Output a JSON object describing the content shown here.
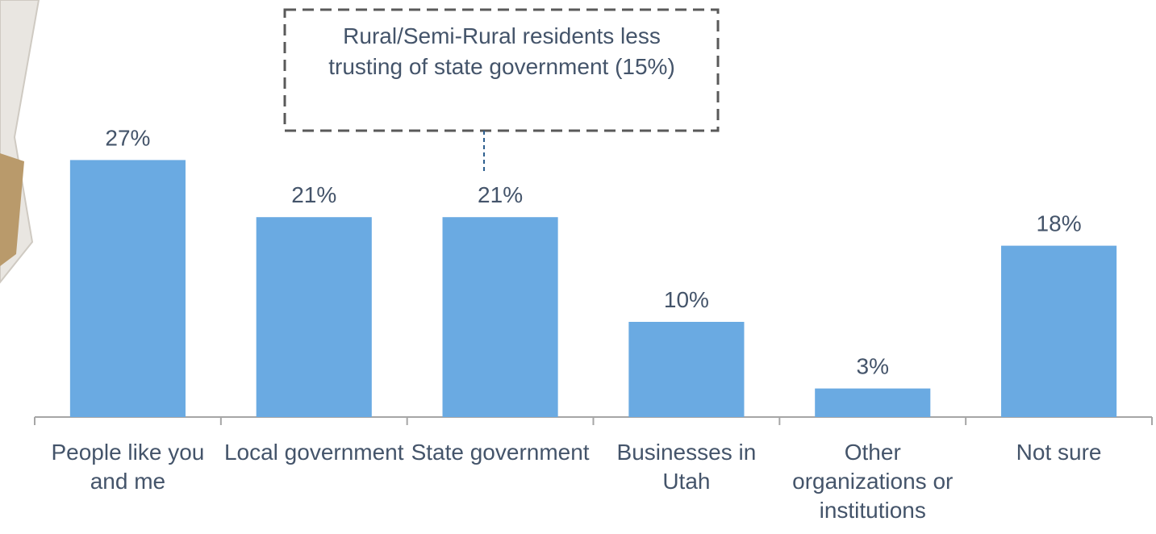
{
  "chart_data": {
    "type": "bar",
    "categories": [
      "People like you and me",
      "Local government",
      "State government",
      "Businesses in Utah",
      "Other organizations or institutions",
      "Not sure"
    ],
    "values": [
      27,
      21,
      21,
      10,
      3,
      18
    ],
    "value_labels": [
      "27%",
      "21%",
      "21%",
      "10%",
      "3%",
      "18%"
    ],
    "color": "#6aaae2",
    "ylim": [
      0,
      30
    ],
    "annotation": "Rural/Semi-Rural residents less trusting of state government (15%)"
  }
}
